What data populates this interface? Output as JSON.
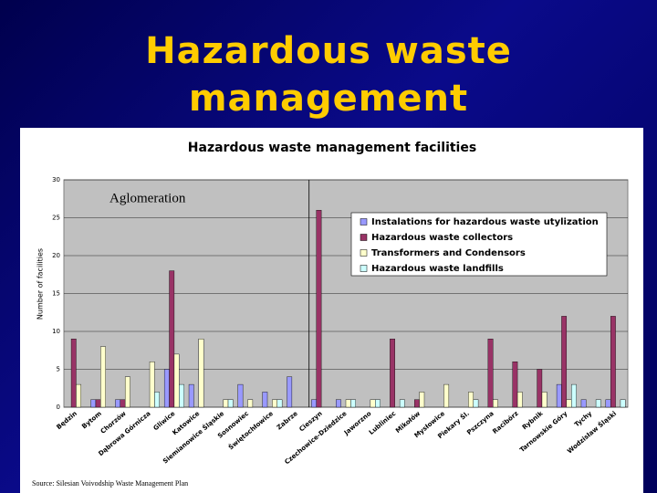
{
  "slide_title": "Hazardous waste management",
  "chart_data": {
    "type": "bar",
    "title": "Hazardous waste management facilities",
    "y_label": "Number of facilities",
    "annotation": "Aglomeration",
    "source": "Source: Silesian Voivodship Waste Management Plan",
    "categories": [
      "Będzin",
      "Bytom",
      "Chorzów",
      "Dąbrowa Górnicza",
      "Gliwice",
      "Katowice",
      "Siemianowice Śląskie",
      "Sosnowiec",
      "Świętochłowice",
      "Zabrze",
      "Cieszyn",
      "Czechowice-Dziedzice",
      "Jaworzno",
      "Lubliniec",
      "Mikołów",
      "Mysłowice",
      "Piekary Śl.",
      "Pszczyna",
      "Racibórz",
      "Rybnik",
      "Tarnowskie Góry",
      "Tychy",
      "Wodzisław Śląski"
    ],
    "series": [
      {
        "name": "Instalations for hazardous waste utylization",
        "color": "#9999ff",
        "values": [
          0,
          1,
          1,
          0,
          5,
          3,
          0,
          3,
          2,
          4,
          1,
          1,
          0,
          0,
          0,
          0,
          0,
          0,
          0,
          0,
          3,
          1,
          1
        ]
      },
      {
        "name": "Hazardous waste collectors",
        "color": "#993366",
        "values": [
          9,
          1,
          1,
          0,
          18,
          0,
          0,
          0,
          0,
          0,
          26,
          0,
          0,
          9,
          1,
          0,
          0,
          9,
          6,
          5,
          12,
          0,
          12
        ]
      },
      {
        "name": "Transformers and Condensors",
        "color": "#ffffcc",
        "values": [
          3,
          8,
          4,
          6,
          7,
          9,
          1,
          1,
          1,
          0,
          0,
          1,
          1,
          0,
          2,
          3,
          2,
          1,
          2,
          2,
          1,
          0,
          0
        ]
      },
      {
        "name": "Hazardous waste landfills",
        "color": "#ccffff",
        "values": [
          0,
          0,
          0,
          2,
          3,
          0,
          1,
          0,
          1,
          0,
          0,
          1,
          1,
          1,
          0,
          0,
          1,
          0,
          0,
          0,
          3,
          1,
          1
        ]
      }
    ],
    "ylim": [
      0,
      30
    ],
    "yticks": [
      0,
      5,
      10,
      15,
      20,
      25,
      30
    ],
    "grid": true,
    "legend": "upper right"
  }
}
